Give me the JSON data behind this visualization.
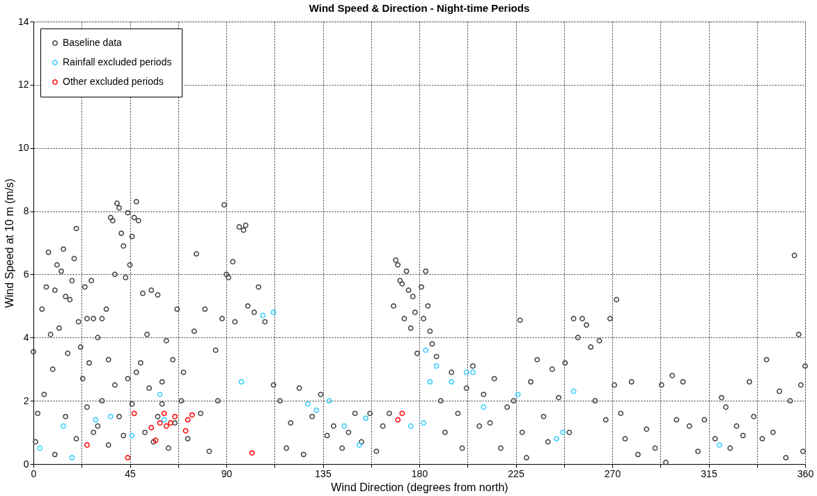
{
  "chart_data": {
    "type": "scatter",
    "title": "Wind Speed & Direction - Night-time Periods",
    "xlabel": "Wind Direction (degrees from north)",
    "ylabel": "Wind Speed at 10 m (m/s)",
    "xlim": [
      0,
      360
    ],
    "ylim": [
      0,
      14
    ],
    "xticks": [
      0,
      {
        "value": 22.5,
        "label": null
      },
      45,
      {
        "value": 67.5,
        "label": null
      },
      90,
      {
        "value": 112.5,
        "label": null
      },
      135,
      {
        "value": 157.5,
        "label": null
      },
      180,
      {
        "value": 202.5,
        "label": null
      },
      225,
      {
        "value": 247.5,
        "label": null
      },
      270,
      {
        "value": 292.5,
        "label": null
      },
      315,
      {
        "value": 337.5,
        "label": null
      },
      360
    ],
    "yticks": [
      0,
      2,
      4,
      6,
      8,
      10,
      12,
      14
    ],
    "grid": true,
    "legend": "top left",
    "marker": "circle",
    "series": [
      {
        "name": "Baseline data",
        "color": "#404040",
        "x": [
          0,
          1,
          2,
          4,
          5,
          6,
          7,
          8,
          9,
          10,
          11,
          12,
          13,
          14,
          15,
          16,
          17,
          18,
          19,
          20,
          21,
          22,
          23,
          24,
          25,
          26,
          27,
          28,
          30,
          32,
          34,
          35,
          36,
          37,
          38,
          39,
          40,
          41,
          42,
          43,
          44,
          45,
          46,
          47,
          48,
          49,
          51,
          53,
          55,
          58,
          60,
          62,
          65,
          67,
          70,
          75,
          76,
          80,
          85,
          88,
          89,
          90,
          91,
          93,
          94,
          96,
          98,
          99,
          100,
          103,
          105,
          108,
          112,
          115,
          118,
          120,
          124,
          126,
          130,
          134,
          137,
          140,
          144,
          147,
          150,
          153,
          157,
          160,
          163,
          166,
          168,
          169,
          170,
          171,
          172,
          173,
          174,
          175,
          176,
          177,
          178,
          179,
          181,
          182,
          183,
          184,
          185,
          186,
          188,
          190,
          192,
          195,
          198,
          200,
          202,
          205,
          208,
          210,
          213,
          215,
          218,
          221,
          224,
          227,
          228,
          230,
          232,
          235,
          238,
          240,
          242,
          245,
          248,
          250,
          252,
          254,
          256,
          258,
          260,
          262,
          264,
          267,
          269,
          271,
          272,
          274,
          276,
          279,
          282,
          286,
          290,
          293,
          295,
          298,
          300,
          303,
          306,
          310,
          313,
          318,
          321,
          323,
          325,
          328,
          331,
          334,
          336,
          340,
          342,
          345,
          348,
          351,
          353,
          355,
          357,
          358,
          359,
          360,
          30,
          32,
          35,
          38,
          40,
          42,
          44,
          46,
          48,
          50,
          52,
          54,
          56,
          58,
          60,
          63,
          66,
          69,
          72,
          78,
          82,
          86,
          10,
          15,
          20,
          25,
          28
        ],
        "values": [
          3.55,
          0.7,
          1.6,
          4.9,
          2.2,
          5.6,
          6.7,
          4.1,
          3.0,
          5.5,
          6.3,
          4.3,
          6.1,
          6.8,
          5.3,
          3.5,
          5.2,
          5.8,
          6.5,
          7.45,
          4.5,
          3.7,
          2.7,
          5.6,
          4.6,
          3.2,
          5.8,
          4.6,
          4.0,
          4.6,
          4.9,
          3.3,
          7.8,
          7.7,
          6.0,
          8.25,
          8.1,
          7.3,
          6.9,
          5.9,
          7.95,
          6.3,
          7.2,
          7.8,
          8.3,
          7.7,
          5.4,
          4.1,
          5.5,
          5.35,
          2.6,
          3.9,
          3.3,
          4.9,
          2.9,
          4.2,
          6.65,
          4.9,
          3.6,
          4.6,
          8.2,
          6.0,
          5.9,
          6.4,
          4.5,
          7.5,
          7.4,
          7.55,
          5.0,
          4.8,
          5.6,
          4.5,
          2.5,
          2.0,
          0.5,
          1.3,
          2.4,
          0.3,
          1.5,
          2.2,
          0.9,
          1.2,
          0.5,
          1.0,
          1.6,
          0.7,
          1.6,
          0.4,
          1.2,
          1.6,
          5.0,
          6.45,
          6.3,
          5.8,
          5.7,
          4.6,
          6.1,
          5.5,
          4.3,
          5.3,
          4.8,
          3.5,
          5.6,
          4.6,
          6.1,
          5.0,
          4.2,
          3.8,
          3.4,
          2.0,
          1.0,
          2.9,
          1.6,
          0.5,
          2.4,
          3.1,
          1.2,
          2.2,
          1.3,
          2.7,
          0.5,
          1.8,
          2.0,
          4.55,
          1.0,
          0.2,
          2.6,
          3.3,
          1.5,
          0.7,
          3.0,
          2.1,
          3.2,
          1.0,
          4.6,
          4.0,
          4.6,
          4.4,
          3.7,
          2.0,
          3.9,
          1.4,
          4.6,
          2.5,
          5.2,
          1.6,
          0.8,
          2.6,
          0.3,
          1.1,
          0.5,
          2.5,
          0.05,
          2.8,
          1.4,
          2.6,
          1.2,
          0.4,
          1.4,
          0.8,
          2.1,
          1.8,
          0.5,
          1.2,
          0.9,
          2.6,
          1.5,
          0.8,
          3.3,
          1.0,
          2.3,
          0.2,
          2.0,
          6.6,
          4.1,
          2.5,
          0.4,
          3.1,
          1.2,
          2.0,
          0.6,
          2.5,
          1.5,
          0.9,
          2.7,
          1.9,
          2.9,
          3.2,
          1.0,
          2.4,
          0.7,
          1.5,
          1.9,
          0.5,
          1.3,
          2.0,
          0.8,
          1.6,
          0.4,
          2.0,
          0.3,
          1.5,
          0.8,
          1.8,
          1.0
        ]
      },
      {
        "name": "Rainfall excluded periods",
        "color": "#33ccff",
        "x": [
          3,
          14,
          18,
          29,
          36,
          46,
          59,
          61,
          97,
          107,
          112,
          128,
          132,
          138,
          145,
          152,
          155,
          176,
          182,
          183,
          185,
          188,
          195,
          202,
          205,
          210,
          226,
          244,
          247,
          252,
          320
        ],
        "values": [
          0.5,
          1.2,
          0.2,
          1.4,
          1.5,
          0.9,
          2.2,
          1.4,
          2.6,
          4.7,
          4.8,
          1.9,
          1.7,
          2.0,
          1.2,
          0.6,
          1.45,
          1.2,
          1.3,
          3.6,
          2.6,
          3.1,
          2.6,
          2.9,
          2.9,
          1.8,
          2.2,
          0.8,
          1.0,
          2.3,
          0.6
        ]
      },
      {
        "name": "Other excluded periods",
        "color": "#ff0000",
        "x": [
          25,
          44,
          47,
          55,
          57,
          59,
          61,
          62,
          64,
          66,
          71,
          72,
          74,
          102,
          170,
          172
        ],
        "values": [
          0.6,
          0.2,
          1.6,
          1.15,
          0.75,
          1.3,
          1.6,
          1.2,
          1.3,
          1.5,
          1.05,
          1.4,
          1.55,
          0.35,
          1.4,
          1.6
        ]
      }
    ]
  }
}
